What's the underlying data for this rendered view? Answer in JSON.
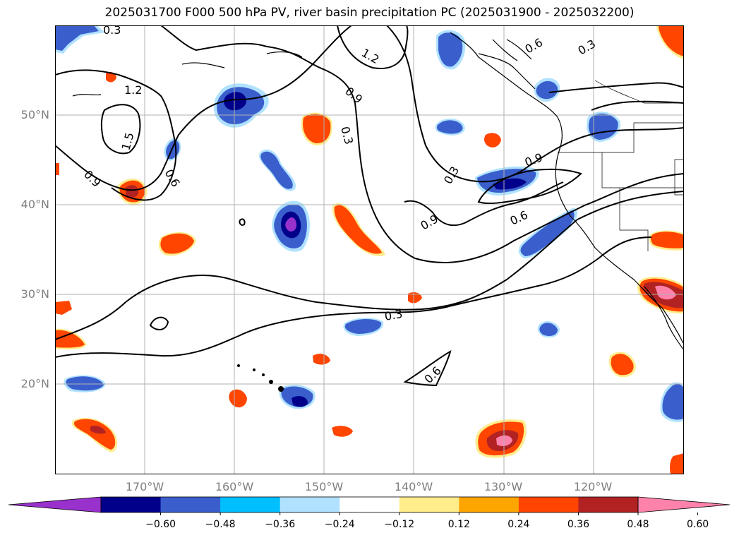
{
  "title": "2025031700 F000 500 hPa PV, river basin precipitation PC (2025031900 - 2025032200)",
  "map": {
    "lat_labels": [
      "50°N",
      "40°N",
      "30°N",
      "20°N"
    ],
    "lon_labels": [
      "170°W",
      "160°W",
      "150°W",
      "140°W",
      "130°W",
      "120°W"
    ],
    "contour_labels": [
      "0.3",
      "1.2",
      "0.6",
      "0.3",
      "1.2",
      "0.9",
      "0.3",
      "1.5",
      "0.6",
      "0.9",
      "0.3",
      "0.9",
      "0.9",
      "0.6",
      "0.3",
      "0.6"
    ],
    "colors": {
      "neg_060": "#9932cc",
      "neg_048": "#00008b",
      "neg_036": "#3a5fcd",
      "neg_024": "#00bfff",
      "neg_012": "#b0e2ff",
      "pos_012": "#ffec8b",
      "pos_024": "#ffa500",
      "pos_036": "#ff4500",
      "pos_048": "#b22222",
      "pos_060": "#ff82ab"
    }
  },
  "colorbar": {
    "colors": [
      "#9932cc",
      "#00008b",
      "#3a5fcd",
      "#00bfff",
      "#b0e2ff",
      "#ffffff",
      "#ffec8b",
      "#ffa500",
      "#ff4500",
      "#b22222",
      "#ff82ab"
    ],
    "tick_labels": [
      "−0.60",
      "−0.48",
      "−0.36",
      "−0.24",
      "−0.12",
      "0.12",
      "0.24",
      "0.36",
      "0.48",
      "0.60"
    ]
  }
}
